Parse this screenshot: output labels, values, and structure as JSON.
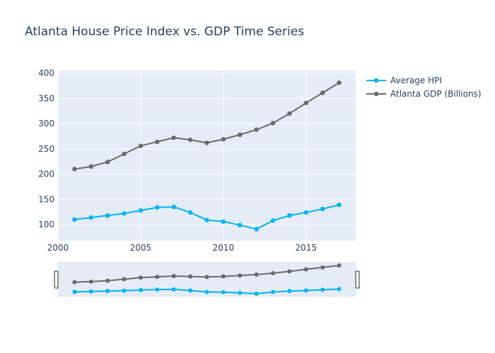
{
  "chart_data": {
    "type": "line",
    "title": "Atlanta House Price Index vs. GDP Time Series",
    "xlabel": "",
    "ylabel": "",
    "xlim": [
      2000,
      2018
    ],
    "ylim": [
      68,
      405
    ],
    "x_ticks": [
      2000,
      2005,
      2010,
      2015
    ],
    "y_ticks": [
      100,
      150,
      200,
      250,
      300,
      350,
      400
    ],
    "grid": true,
    "legend": "top-right",
    "range_slider": true,
    "x": [
      2001,
      2002,
      2003,
      2004,
      2005,
      2006,
      2007,
      2008,
      2009,
      2010,
      2011,
      2012,
      2013,
      2014,
      2015,
      2016,
      2017
    ],
    "series": [
      {
        "name": "Average HPI",
        "color": "#00b4f0",
        "values": [
          110,
          114,
          118,
          122,
          128,
          134,
          135,
          124,
          109,
          106,
          99,
          91,
          108,
          118,
          124,
          131,
          139
        ]
      },
      {
        "name": "Atlanta GDP (Billions)",
        "color": "#6a6a6a",
        "values": [
          210,
          215,
          224,
          240,
          256,
          264,
          272,
          268,
          262,
          269,
          278,
          288,
          301,
          320,
          341,
          361,
          381
        ]
      }
    ]
  }
}
